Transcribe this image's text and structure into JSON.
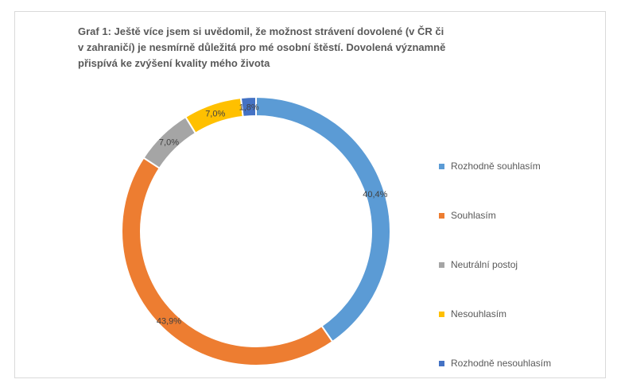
{
  "chart_data": {
    "type": "donut",
    "title": "Graf 1: Ještě více jsem si uvědomil, že možnost strávení dovolené (v ČR či v zahraničí) je nesmírně důležitá pro mé osobní štěstí. Dovolená významně přispívá ke zvýšení kvality mého života",
    "categories": [
      "Rozhodně souhlasím",
      "Souhlasím",
      "Neutrální postoj",
      "Nesouhlasím",
      "Rozhodně nesouhlasím"
    ],
    "values": [
      40.4,
      43.9,
      7.0,
      7.0,
      1.8
    ],
    "labels": [
      "40,4%",
      "43,9%",
      "7,0%",
      "7,0%",
      "1,8%"
    ],
    "colors": [
      "#5b9bd5",
      "#ed7d31",
      "#a5a5a5",
      "#ffc000",
      "#4472c4"
    ],
    "legend_position": "right"
  }
}
